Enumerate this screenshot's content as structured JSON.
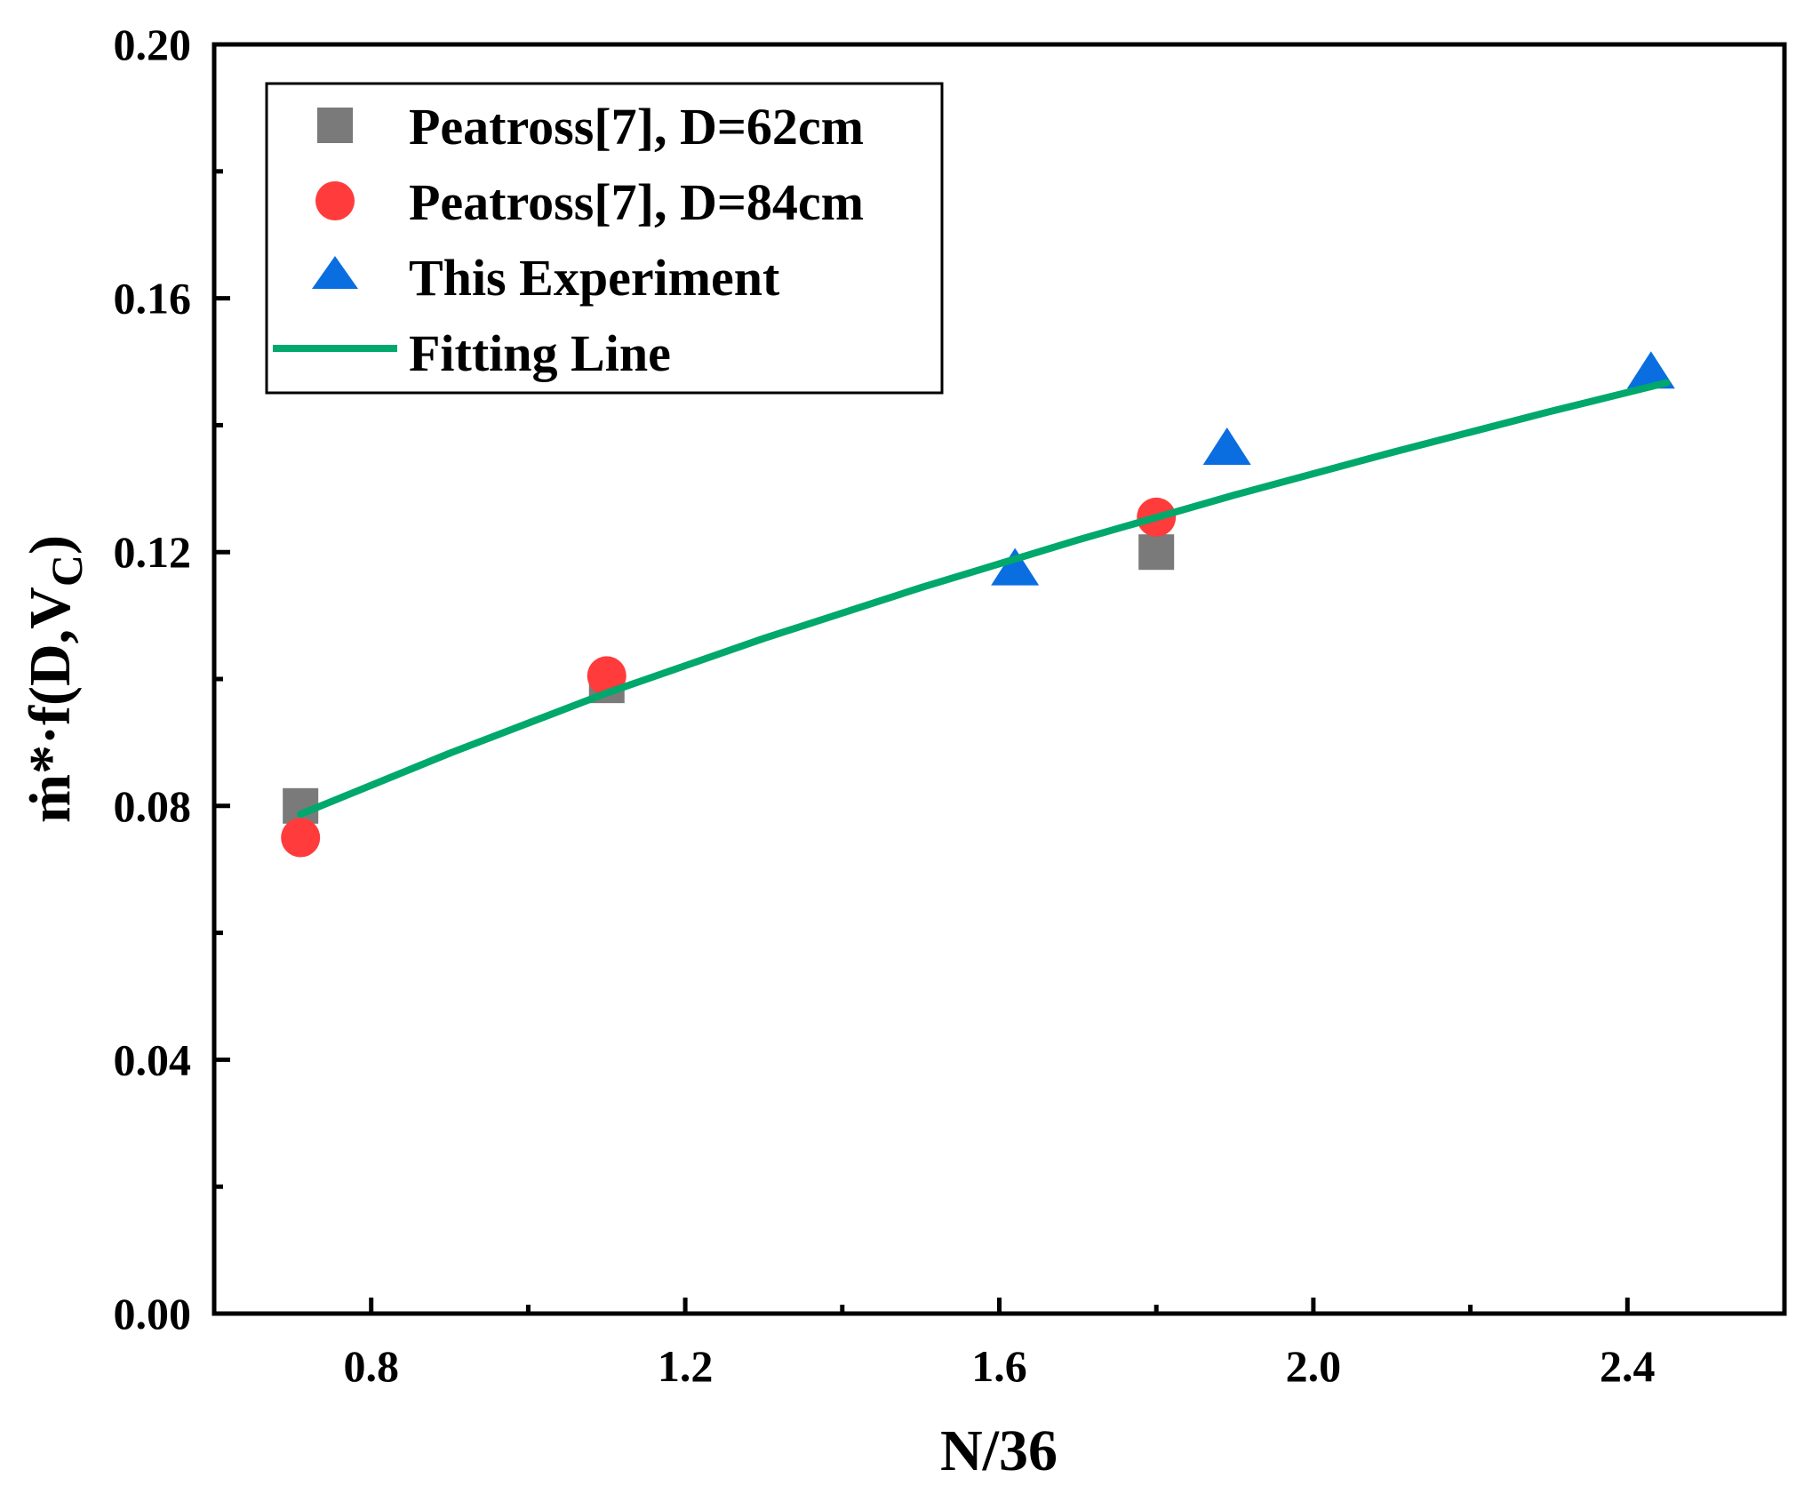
{
  "chart_data": {
    "type": "scatter",
    "xlabel": "N/36",
    "ylabel": "ṁ*·f(D,V",
    "ylabel_subscript": "C",
    "ylabel_close": ")",
    "xlim": [
      0.6,
      2.6
    ],
    "ylim": [
      0.0,
      0.2
    ],
    "xticks": [
      0.8,
      1.2,
      1.6,
      2.0,
      2.4
    ],
    "xtick_labels": [
      "0.8",
      "1.2",
      "1.6",
      "2.0",
      "2.4"
    ],
    "xminor": [
      1.0,
      1.4,
      1.8,
      2.2
    ],
    "yticks": [
      0.0,
      0.04,
      0.08,
      0.12,
      0.16,
      0.2
    ],
    "ytick_labels": [
      "0.00",
      "0.04",
      "0.08",
      "0.12",
      "0.16",
      "0.20"
    ],
    "yminor": [
      0.02,
      0.06,
      0.1,
      0.14,
      0.18
    ],
    "grid": false,
    "legend_position": "top-left",
    "series": [
      {
        "name": "Peatross[7], D=62cm",
        "marker": "square",
        "color": "#7a7a7a",
        "x": [
          0.71,
          1.1,
          1.8
        ],
        "y": [
          0.08,
          0.099,
          0.12
        ]
      },
      {
        "name": "Peatross[7], D=84cm",
        "marker": "circle",
        "color": "#ff3b3b",
        "x": [
          0.71,
          1.1,
          1.8
        ],
        "y": [
          0.075,
          0.1005,
          0.1255
        ]
      },
      {
        "name": "This Experiment",
        "marker": "triangle",
        "color": "#0a6ee0",
        "x": [
          1.62,
          1.89,
          2.43
        ],
        "y": [
          0.117,
          0.136,
          0.148
        ]
      },
      {
        "name": "Fitting Line",
        "marker": "line",
        "color": "#00a86b",
        "x": [
          0.71,
          0.9,
          1.1,
          1.3,
          1.5,
          1.7,
          1.9,
          2.1,
          2.3,
          2.45
        ],
        "y": [
          0.0787,
          0.0883,
          0.0978,
          0.1064,
          0.1144,
          0.1219,
          0.129,
          0.1357,
          0.1421,
          0.1467
        ]
      }
    ]
  }
}
